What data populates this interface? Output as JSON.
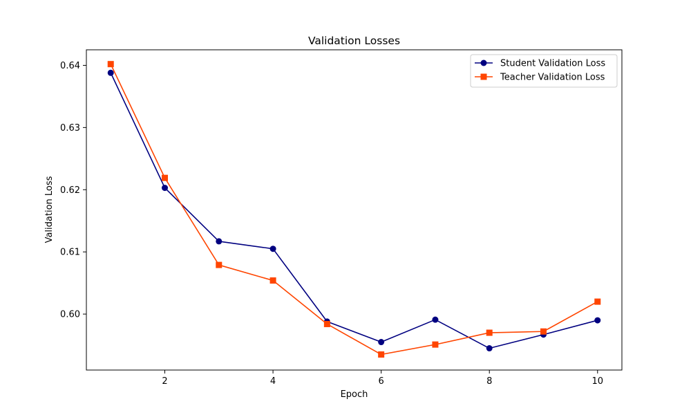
{
  "chart_data": {
    "type": "line",
    "title": "Validation Losses",
    "xlabel": "Epoch",
    "ylabel": "Validation Loss",
    "x": [
      1,
      2,
      3,
      4,
      5,
      6,
      7,
      8,
      9,
      10
    ],
    "xlim": [
      0.55,
      10.45
    ],
    "ylim": [
      0.591,
      0.6425
    ],
    "xticks": [
      2,
      4,
      6,
      8,
      10
    ],
    "xtick_labels": [
      "2",
      "4",
      "6",
      "8",
      "10"
    ],
    "yticks": [
      0.6,
      0.61,
      0.62,
      0.63,
      0.64
    ],
    "ytick_labels": [
      "0.60",
      "0.61",
      "0.62",
      "0.63",
      "0.64"
    ],
    "grid": false,
    "legend_position": "top-right",
    "series": [
      {
        "name": "Student Validation Loss",
        "color": "#000080",
        "marker": "circle",
        "values": [
          0.6388,
          0.6203,
          0.6117,
          0.6105,
          0.5988,
          0.5955,
          0.5991,
          0.5945,
          0.5967,
          0.599
        ]
      },
      {
        "name": "Teacher Validation Loss",
        "color": "#FF4500",
        "marker": "square",
        "values": [
          0.6402,
          0.6219,
          0.6079,
          0.6054,
          0.5984,
          0.5935,
          0.5951,
          0.597,
          0.5972,
          0.602
        ]
      }
    ]
  }
}
